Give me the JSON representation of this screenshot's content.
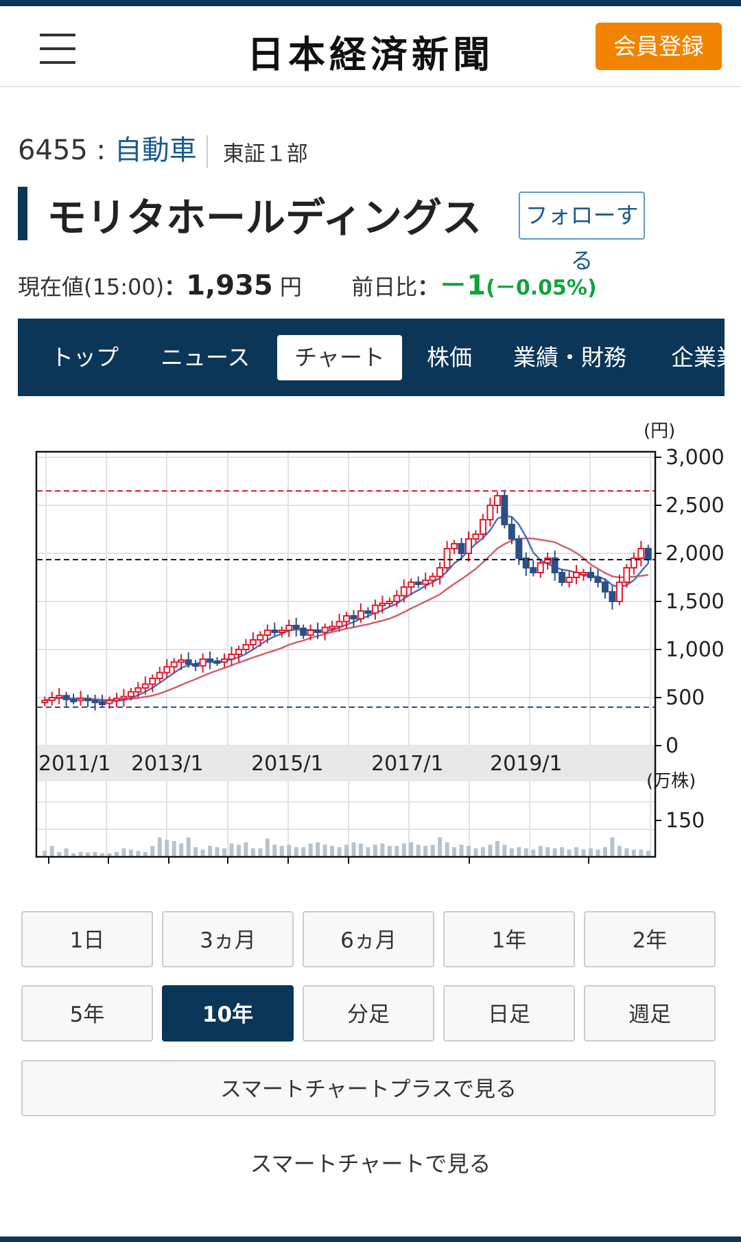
{
  "header": {
    "logo": "日本経済新聞",
    "register_label": "会員登録"
  },
  "stock": {
    "code": "6455",
    "separator": ":",
    "sector": "自動車",
    "market": "東証１部",
    "name": "モリタホールディングス",
    "follow_label": "フォローする",
    "price_label": "現在値(15:00)",
    "price_colon": "：",
    "price": "1,935",
    "price_unit": "円",
    "change_label": "前日比",
    "change": "－1",
    "change_pct": "(－0.05%)"
  },
  "tabs": [
    {
      "label": "トップ"
    },
    {
      "label": "ニュース"
    },
    {
      "label": "チャート"
    },
    {
      "label": "株価"
    },
    {
      "label": "業績・財務"
    },
    {
      "label": "企業業"
    }
  ],
  "colors": {
    "navy": "#0b3658",
    "orange": "#f08300",
    "green": "#12a33c",
    "up": "#e0192a",
    "down": "#2c4f86",
    "ma_short": "#4a70b8",
    "ma_long": "#d0606a"
  },
  "chart_data": {
    "type": "candlestick",
    "price_unit": "(円)",
    "volume_unit": "(万株)",
    "y_ticks": [
      "3,000",
      "2,500",
      "2,000",
      "1,500",
      "1,000",
      "500",
      "0"
    ],
    "ylim": [
      0,
      3000
    ],
    "volume_ticks": [
      "150"
    ],
    "x_labels": [
      "2011/1",
      "2013/1",
      "2015/1",
      "2017/1",
      "2019/1"
    ],
    "ref_lines": {
      "high": 2650,
      "current": 1935,
      "low": 400
    },
    "closes": [
      470,
      500,
      520,
      480,
      470,
      490,
      470,
      450,
      440,
      470,
      490,
      510,
      560,
      600,
      640,
      700,
      760,
      820,
      870,
      890,
      850,
      830,
      900,
      880,
      870,
      900,
      950,
      1000,
      1050,
      1100,
      1150,
      1200,
      1180,
      1200,
      1250,
      1220,
      1150,
      1200,
      1180,
      1230,
      1240,
      1290,
      1350,
      1320,
      1400,
      1380,
      1460,
      1480,
      1500,
      1560,
      1650,
      1700,
      1680,
      1720,
      1760,
      1850,
      2050,
      2100,
      2000,
      2150,
      2200,
      2350,
      2500,
      2600,
      2300,
      2150,
      1950,
      1850,
      1800,
      1900,
      1950,
      1800,
      1700,
      1750,
      1800,
      1800,
      1750,
      1700,
      1600,
      1500,
      1700,
      1850,
      1950,
      2050,
      1935
    ],
    "volumes": [
      25,
      45,
      20,
      35,
      15,
      20,
      18,
      20,
      15,
      15,
      20,
      35,
      30,
      25,
      20,
      45,
      80,
      70,
      65,
      55,
      80,
      40,
      30,
      45,
      40,
      35,
      55,
      50,
      60,
      35,
      35,
      75,
      50,
      45,
      50,
      40,
      40,
      55,
      60,
      50,
      45,
      40,
      50,
      60,
      55,
      40,
      50,
      55,
      45,
      45,
      55,
      60,
      50,
      45,
      50,
      80,
      60,
      40,
      50,
      45,
      35,
      40,
      50,
      65,
      50,
      35,
      40,
      35,
      30,
      45,
      40,
      35,
      40,
      30,
      40,
      30,
      35,
      30,
      40,
      80,
      45,
      35,
      30,
      30,
      25
    ]
  },
  "period_buttons": [
    {
      "label": "1日"
    },
    {
      "label": "3ヵ月"
    },
    {
      "label": "6ヵ月"
    },
    {
      "label": "1年"
    },
    {
      "label": "2年"
    },
    {
      "label": "5年"
    },
    {
      "label": "10年"
    },
    {
      "label": "分足"
    },
    {
      "label": "日足"
    },
    {
      "label": "週足"
    }
  ],
  "links": {
    "smart_plus": "スマートチャートプラスで見る",
    "smart": "スマートチャートで見る"
  }
}
